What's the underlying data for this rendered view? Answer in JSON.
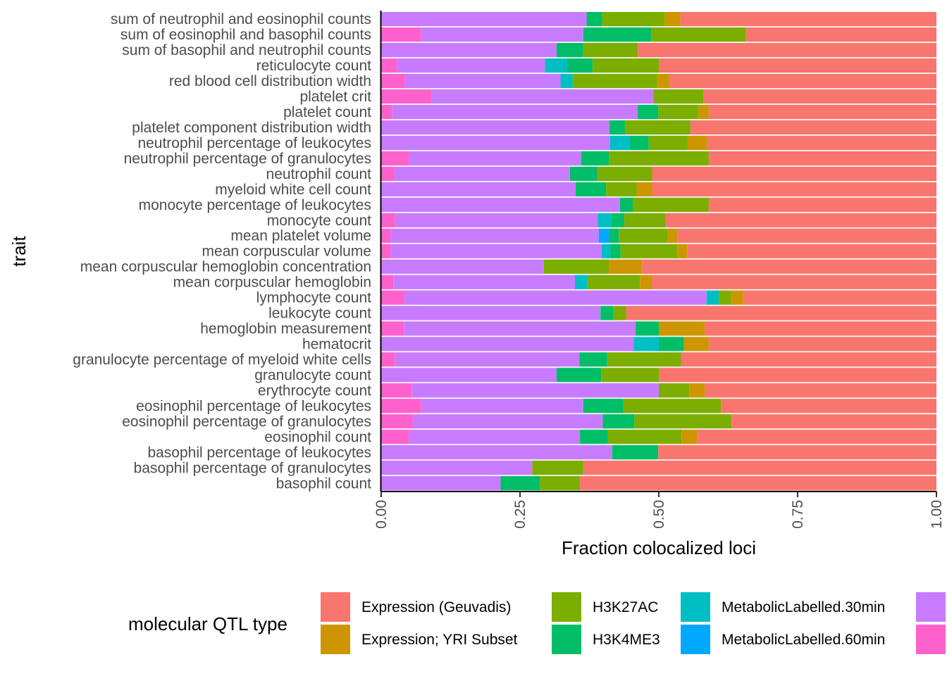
{
  "chart_data": {
    "type": "bar",
    "orientation": "horizontal",
    "stacked": true,
    "title": "",
    "xlabel": "Fraction colocalized loci",
    "ylabel": "trait",
    "xlim": [
      0,
      1
    ],
    "x_ticks": [
      "0.00",
      "0.25",
      "0.50",
      "0.75",
      "1.00"
    ],
    "grid": false,
    "legend": {
      "title": "molecular QTL type",
      "position": "bottom",
      "entries": [
        {
          "name": "Expression (Geuvadis)",
          "color": "#F8766D"
        },
        {
          "name": "Expression; YRI Subset",
          "color": "#CD9600"
        },
        {
          "name": "H3K27AC",
          "color": "#7CAE00"
        },
        {
          "name": "H3K4ME3",
          "color": "#00BE67"
        },
        {
          "name": "MetabolicLabelled.30min",
          "color": "#00BFC4"
        },
        {
          "name": "MetabolicLabelled.60min",
          "color": "#00A9FF"
        },
        {
          "name": "",
          "color": "#C77CFF"
        },
        {
          "name": "",
          "color": "#FF61CC"
        }
      ]
    },
    "stack_order": [
      "#FF61CC",
      "#C77CFF",
      "#00A9FF",
      "#00BFC4",
      "#00BE67",
      "#7CAE00",
      "#CD9600",
      "#F8766D"
    ],
    "categories": [
      "sum of neutrophil and eosinophil counts",
      "sum of eosinophil and basophil counts",
      "sum of basophil and neutrophil counts",
      "reticulocyte count",
      "red blood cell distribution width",
      "platelet crit",
      "platelet count",
      "platelet component distribution width",
      "neutrophil percentage of leukocytes",
      "neutrophil percentage of granulocytes",
      "neutrophil count",
      "myeloid white cell count",
      "monocyte percentage of leukocytes",
      "monocyte count",
      "mean platelet volume",
      "mean corpuscular volume",
      "mean corpuscular hemoglobin concentration",
      "mean corpuscular hemoglobin",
      "lymphocyte count",
      "leukocyte count",
      "hemoglobin measurement",
      "hematocrit",
      "granulocyte percentage of myeloid white cells",
      "granulocyte count",
      "erythrocyte count",
      "eosinophil percentage of leukocytes",
      "eosinophil percentage of granulocytes",
      "eosinophil count",
      "basophil percentage of leukocytes",
      "basophil percentage of granulocytes",
      "basophil count"
    ],
    "series": [
      {
        "color": "#FF61CC",
        "values": [
          0,
          0.072,
          0,
          0.028,
          0.043,
          0.09,
          0.02,
          0,
          0,
          0.05,
          0.024,
          0,
          0,
          0.025,
          0.017,
          0.017,
          0,
          0.022,
          0.042,
          0,
          0.041,
          0,
          0.025,
          0,
          0.055,
          0.072,
          0.057,
          0.05,
          0,
          0,
          0
        ]
      },
      {
        "color": "#C77CFF",
        "values": [
          0.37,
          0.292,
          0.316,
          0.267,
          0.28,
          0.4,
          0.442,
          0.411,
          0.412,
          0.31,
          0.316,
          0.35,
          0.43,
          0.365,
          0.375,
          0.38,
          0.293,
          0.327,
          0.544,
          0.395,
          0.417,
          0.455,
          0.332,
          0.316,
          0.445,
          0.292,
          0.342,
          0.308,
          0.416,
          0.272,
          0.215
        ]
      },
      {
        "color": "#00A9FF",
        "values": [
          0,
          0,
          0,
          0,
          0,
          0,
          0,
          0,
          0,
          0,
          0,
          0,
          0,
          0,
          0.018,
          0,
          0,
          0,
          0,
          0,
          0,
          0,
          0,
          0,
          0,
          0,
          0,
          0,
          0,
          0,
          0
        ]
      },
      {
        "color": "#00BFC4",
        "values": [
          0,
          0,
          0,
          0.04,
          0.022,
          0,
          0,
          0,
          0.035,
          0,
          0,
          0,
          0,
          0.024,
          0,
          0.016,
          0,
          0.022,
          0.022,
          0,
          0,
          0.045,
          0,
          0,
          0,
          0,
          0,
          0,
          0,
          0,
          0
        ]
      },
      {
        "color": "#00BE67",
        "values": [
          0.028,
          0.123,
          0.048,
          0.046,
          0,
          0,
          0.037,
          0.028,
          0.035,
          0.05,
          0.05,
          0.055,
          0.023,
          0.024,
          0.018,
          0.018,
          0,
          0,
          0,
          0.023,
          0.042,
          0.045,
          0.05,
          0.08,
          0,
          0.072,
          0.057,
          0.05,
          0.083,
          0,
          0.071
        ]
      },
      {
        "color": "#7CAE00",
        "values": [
          0.113,
          0.17,
          0.098,
          0.12,
          0.152,
          0.09,
          0.073,
          0.118,
          0.07,
          0.18,
          0.098,
          0.055,
          0.137,
          0.074,
          0.088,
          0.103,
          0.117,
          0.095,
          0.022,
          0.023,
          0,
          0,
          0.133,
          0.105,
          0.055,
          0.176,
          0.175,
          0.133,
          0,
          0.092,
          0.072
        ]
      },
      {
        "color": "#CD9600",
        "values": [
          0.028,
          0,
          0,
          0,
          0.022,
          0,
          0.018,
          0,
          0.035,
          0,
          0,
          0.028,
          0,
          0,
          0.018,
          0.017,
          0.06,
          0.022,
          0.022,
          0,
          0.083,
          0.045,
          0,
          0,
          0.028,
          0,
          0,
          0.028,
          0,
          0,
          0
        ]
      },
      {
        "color": "#F8766D",
        "values": [
          0.461,
          0.343,
          0.538,
          0.499,
          0.481,
          0.42,
          0.41,
          0.443,
          0.413,
          0.41,
          0.512,
          0.512,
          0.41,
          0.488,
          0.466,
          0.449,
          0.53,
          0.512,
          0.348,
          0.559,
          0.417,
          0.41,
          0.46,
          0.499,
          0.417,
          0.388,
          0.369,
          0.431,
          0.501,
          0.636,
          0.642
        ]
      }
    ]
  }
}
